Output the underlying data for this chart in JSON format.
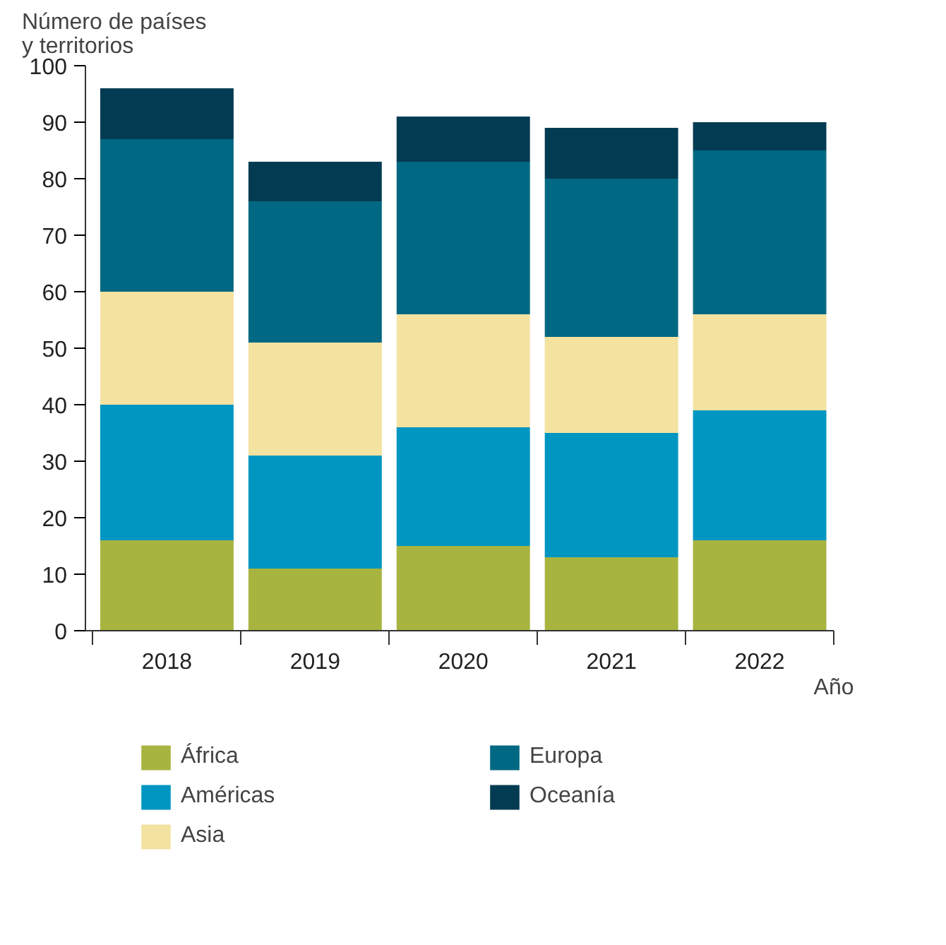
{
  "chart_data": {
    "type": "bar",
    "stacked": true,
    "ylabel": "Número de países\ny territorios",
    "xlabel": "Año",
    "categories": [
      "2018",
      "2019",
      "2020",
      "2021",
      "2022"
    ],
    "series": [
      {
        "name": "África",
        "color": "#a7b43f",
        "values": [
          16,
          11,
          15,
          13,
          16
        ]
      },
      {
        "name": "Américas",
        "color": "#0096c2",
        "values": [
          24,
          20,
          21,
          22,
          23
        ]
      },
      {
        "name": "Asia",
        "color": "#f3e2a0",
        "values": [
          20,
          20,
          20,
          17,
          17
        ]
      },
      {
        "name": "Europa",
        "color": "#006882",
        "values": [
          27,
          25,
          27,
          28,
          29
        ]
      },
      {
        "name": "Oceanía",
        "color": "#033c52",
        "values": [
          9,
          7,
          8,
          9,
          5
        ]
      }
    ],
    "ylim": [
      0,
      100
    ],
    "yticks": [
      0,
      10,
      20,
      30,
      40,
      50,
      60,
      70,
      80,
      90,
      100
    ],
    "grid": false,
    "legend": "bottom"
  }
}
